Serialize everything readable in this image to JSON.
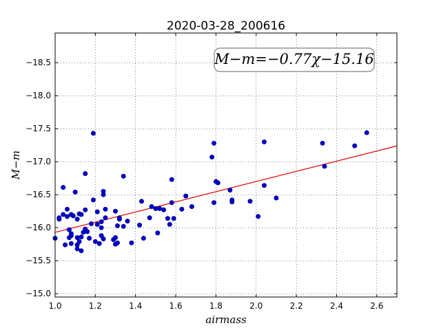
{
  "chart_data": {
    "type": "scatter",
    "title": "2020-03-28_200616",
    "xlabel": "airmass",
    "ylabel": "M−m",
    "xlim": [
      1.0,
      2.7
    ],
    "ylim": [
      -18.95,
      -14.95
    ],
    "y_inverted": true,
    "grid": true,
    "xticks": [
      "1.0",
      "1.2",
      "1.4",
      "1.6",
      "1.8",
      "2.0",
      "2.2",
      "2.4",
      "2.6"
    ],
    "yticks": [
      "−15.0",
      "−15.5",
      "−16.0",
      "−16.5",
      "−17.0",
      "−17.5",
      "−18.0",
      "−18.5"
    ],
    "xtick_values": [
      1.0,
      1.2,
      1.4,
      1.6,
      1.8,
      2.0,
      2.2,
      2.4,
      2.6
    ],
    "ytick_values": [
      -15.0,
      -15.5,
      -16.0,
      -16.5,
      -17.0,
      -17.5,
      -18.0,
      -18.5
    ],
    "annotation": "M−m=−0.77χ−15.16",
    "fit": {
      "slope": -0.77,
      "intercept": -15.16,
      "color": "#e00000"
    },
    "point_color": "#0000cc",
    "points": [
      [
        1.0,
        -15.84
      ],
      [
        1.02,
        -16.13
      ],
      [
        1.02,
        -16.15
      ],
      [
        1.04,
        -16.2
      ],
      [
        1.04,
        -16.61
      ],
      [
        1.05,
        -15.74
      ],
      [
        1.06,
        -16.17
      ],
      [
        1.06,
        -16.28
      ],
      [
        1.07,
        -15.85
      ],
      [
        1.07,
        -15.97
      ],
      [
        1.08,
        -15.76
      ],
      [
        1.08,
        -15.88
      ],
      [
        1.08,
        -15.91
      ],
      [
        1.08,
        -16.2
      ],
      [
        1.09,
        -16.18
      ],
      [
        1.1,
        -16.54
      ],
      [
        1.11,
        -15.68
      ],
      [
        1.11,
        -15.74
      ],
      [
        1.11,
        -15.85
      ],
      [
        1.11,
        -16.13
      ],
      [
        1.12,
        -15.79
      ],
      [
        1.12,
        -16.21
      ],
      [
        1.13,
        -15.65
      ],
      [
        1.13,
        -15.86
      ],
      [
        1.13,
        -16.2
      ],
      [
        1.14,
        -15.93
      ],
      [
        1.15,
        -15.98
      ],
      [
        1.15,
        -16.27
      ],
      [
        1.15,
        -16.82
      ],
      [
        1.16,
        -15.94
      ],
      [
        1.17,
        -15.84
      ],
      [
        1.18,
        -16.06
      ],
      [
        1.19,
        -16.42
      ],
      [
        1.19,
        -17.43
      ],
      [
        1.2,
        -15.79
      ],
      [
        1.21,
        -16.05
      ],
      [
        1.21,
        -16.24
      ],
      [
        1.22,
        -15.76
      ],
      [
        1.23,
        -15.88
      ],
      [
        1.23,
        -16.0
      ],
      [
        1.23,
        -16.09
      ],
      [
        1.24,
        -15.83
      ],
      [
        1.24,
        -16.5
      ],
      [
        1.24,
        -16.55
      ],
      [
        1.25,
        -16.15
      ],
      [
        1.25,
        -16.28
      ],
      [
        1.29,
        -15.82
      ],
      [
        1.3,
        -15.75
      ],
      [
        1.3,
        -15.85
      ],
      [
        1.3,
        -16.25
      ],
      [
        1.31,
        -15.77
      ],
      [
        1.31,
        -16.03
      ],
      [
        1.32,
        -16.13
      ],
      [
        1.32,
        -16.15
      ],
      [
        1.34,
        -16.02
      ],
      [
        1.34,
        -16.78
      ],
      [
        1.36,
        -16.1
      ],
      [
        1.38,
        -15.77
      ],
      [
        1.42,
        -16.04
      ],
      [
        1.43,
        -16.4
      ],
      [
        1.44,
        -15.84
      ],
      [
        1.47,
        -16.15
      ],
      [
        1.48,
        -16.32
      ],
      [
        1.5,
        -16.29
      ],
      [
        1.51,
        -15.92
      ],
      [
        1.52,
        -16.29
      ],
      [
        1.54,
        -16.27
      ],
      [
        1.56,
        -16.14
      ],
      [
        1.57,
        -16.05
      ],
      [
        1.58,
        -16.38
      ],
      [
        1.58,
        -16.73
      ],
      [
        1.59,
        -16.14
      ],
      [
        1.63,
        -16.28
      ],
      [
        1.65,
        -16.48
      ],
      [
        1.68,
        -16.32
      ],
      [
        1.78,
        -17.07
      ],
      [
        1.79,
        -17.28
      ],
      [
        1.79,
        -16.38
      ],
      [
        1.8,
        -16.7
      ],
      [
        1.81,
        -16.68
      ],
      [
        1.87,
        -16.57
      ],
      [
        1.88,
        -16.39
      ],
      [
        1.88,
        -16.42
      ],
      [
        1.97,
        -16.4
      ],
      [
        2.01,
        -16.17
      ],
      [
        2.04,
        -16.64
      ],
      [
        2.04,
        -17.3
      ],
      [
        2.1,
        -16.45
      ],
      [
        2.33,
        -17.28
      ],
      [
        2.34,
        -16.93
      ],
      [
        2.49,
        -17.24
      ],
      [
        2.55,
        -17.44
      ]
    ]
  }
}
